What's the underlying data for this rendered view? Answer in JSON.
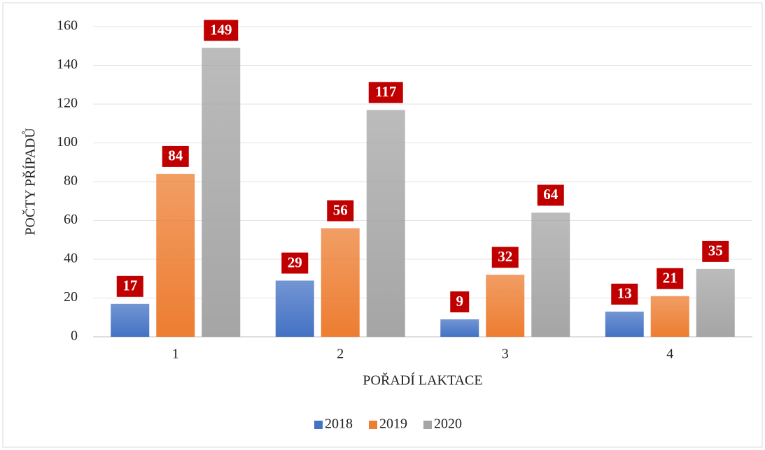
{
  "chart_data": {
    "type": "bar",
    "x_label": "POŘADÍ LAKTACE",
    "y_label": "POČTY PŘÍPADŮ",
    "categories": [
      "1",
      "2",
      "3",
      "4"
    ],
    "series": [
      {
        "name": "2018",
        "color": "#4472c4",
        "values": [
          17,
          29,
          9,
          13
        ]
      },
      {
        "name": "2019",
        "color": "#ed7d31",
        "values": [
          84,
          56,
          32,
          21
        ]
      },
      {
        "name": "2020",
        "color": "#a5a5a5",
        "values": [
          149,
          117,
          64,
          35
        ]
      }
    ],
    "ylim": [
      0,
      160
    ],
    "yticks": [
      0,
      20,
      40,
      60,
      80,
      100,
      120,
      140,
      160
    ],
    "grid": true,
    "legend": "bottom",
    "label_color": "#c00000"
  }
}
